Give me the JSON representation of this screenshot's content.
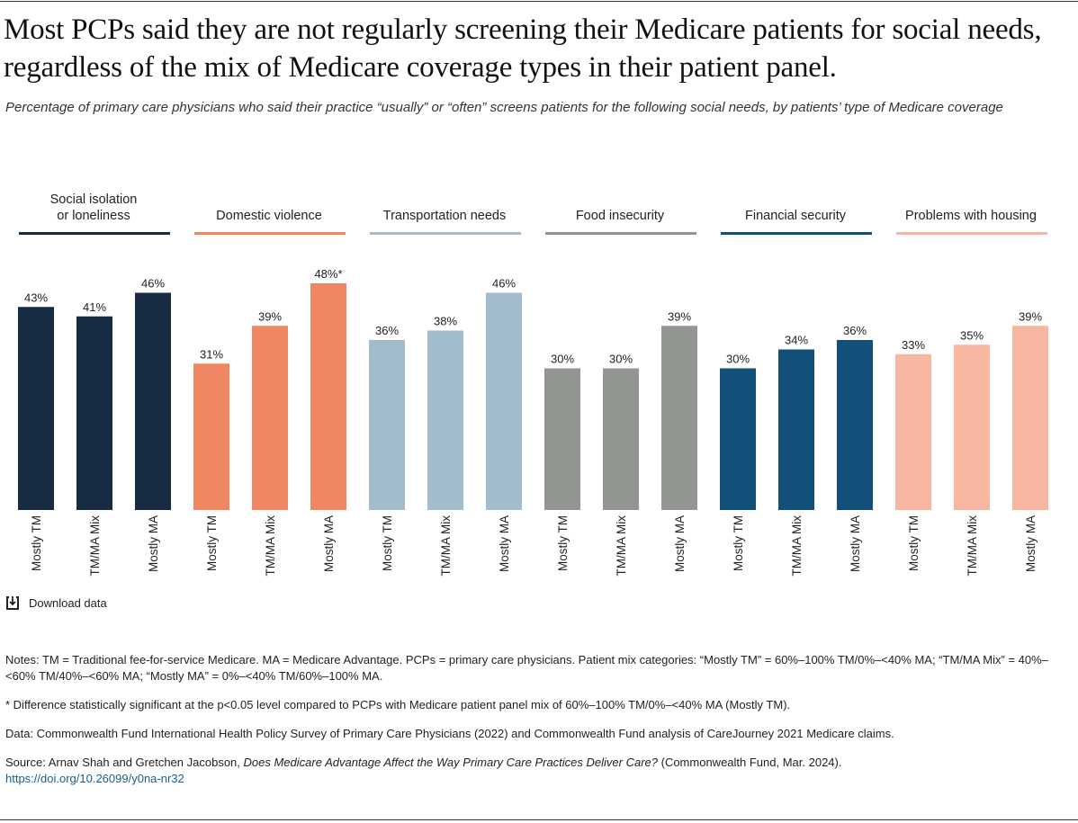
{
  "title": "Most PCPs said they are not regularly screening their Medicare patients for social needs, regardless of the mix of Medicare coverage types in their patient panel.",
  "subtitle": "Percentage of primary care physicians who said their practice “usually” or “often” screens patients for the following social needs, by patients’ type of Medicare coverage",
  "chart_data": {
    "type": "bar",
    "categories": [
      "Mostly TM",
      "TM/MA Mix",
      "Mostly MA"
    ],
    "ylim": [
      0,
      50
    ],
    "grid": false,
    "groups": [
      {
        "name": [
          "Social isolation",
          "or loneliness"
        ],
        "color": "#172B43",
        "values": [
          43,
          41,
          46
        ],
        "labels": [
          "43%",
          "41%",
          "46%"
        ]
      },
      {
        "name": [
          "Domestic violence"
        ],
        "color": "#F08763",
        "values": [
          31,
          39,
          48
        ],
        "labels": [
          "31%",
          "39%",
          "48%*"
        ]
      },
      {
        "name": [
          "Transportation needs"
        ],
        "color": "#A2BCCB",
        "values": [
          36,
          38,
          46
        ],
        "labels": [
          "36%",
          "38%",
          "46%"
        ]
      },
      {
        "name": [
          "Food insecurity"
        ],
        "color": "#919690",
        "values": [
          30,
          30,
          39
        ],
        "labels": [
          "30%",
          "30%",
          "39%"
        ]
      },
      {
        "name": [
          "Financial security"
        ],
        "color": "#12507A",
        "values": [
          30,
          34,
          36
        ],
        "labels": [
          "30%",
          "34%",
          "36%"
        ]
      },
      {
        "name": [
          "Problems with housing"
        ],
        "color": "#F6B6A0",
        "values": [
          33,
          35,
          39
        ],
        "labels": [
          "33%",
          "35%",
          "39%"
        ]
      }
    ]
  },
  "download_label": "Download data",
  "notes": {
    "note1": "Notes: TM = Traditional fee-for-service Medicare. MA = Medicare Advantage. PCPs = primary care physicians. Patient mix categories: “Mostly TM” = 60%–100% TM/0%–<40% MA; “TM/MA Mix” = 40%–<60% TM/40%–<60% MA; “Mostly MA” = 0%–<40% TM/60%–100% MA.",
    "note2": "* Difference statistically significant at the p<0.05 level compared to PCPs with Medicare patient panel mix of 60%–100% TM/0%–<40% MA (Mostly TM).",
    "data": "Data: Commonwealth Fund International Health Policy Survey of Primary Care Physicians (2022) and Commonwealth Fund analysis of CareJourney 2021 Medicare claims.",
    "source_prefix": "Source: Arnav Shah and Gretchen Jacobson, ",
    "source_title": "Does Medicare Advantage Affect the Way Primary Care Practices Deliver Care?",
    "source_suffix": " (Commonwealth Fund, Mar. 2024).",
    "link": "https://doi.org/10.26099/y0na-nr32"
  }
}
